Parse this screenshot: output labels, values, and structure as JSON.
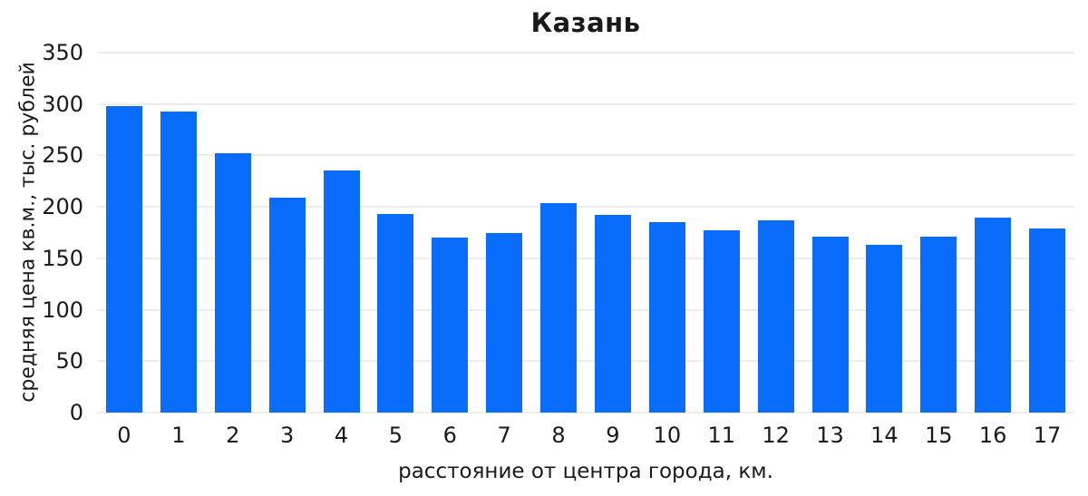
{
  "chart_data": {
    "type": "bar",
    "title": "Казань",
    "xlabel": "расстояние от центра города, км.",
    "ylabel": "средняя цена кв.м., тыс. рублей",
    "categories": [
      "0",
      "1",
      "2",
      "3",
      "4",
      "5",
      "6",
      "7",
      "8",
      "9",
      "10",
      "11",
      "12",
      "13",
      "14",
      "15",
      "16",
      "17"
    ],
    "values": [
      298,
      293,
      252,
      209,
      235,
      193,
      170,
      175,
      204,
      192,
      185,
      177,
      187,
      171,
      163,
      171,
      190,
      179
    ],
    "ylim": [
      0,
      350
    ],
    "yticks": [
      0,
      50,
      100,
      150,
      200,
      250,
      300,
      350
    ],
    "grid": "horizontal-only",
    "legend": "none",
    "colors": {
      "bar": "#0a6cfb",
      "gridline": "#ededed",
      "text": "#1a1a1a",
      "background": "#ffffff"
    }
  }
}
